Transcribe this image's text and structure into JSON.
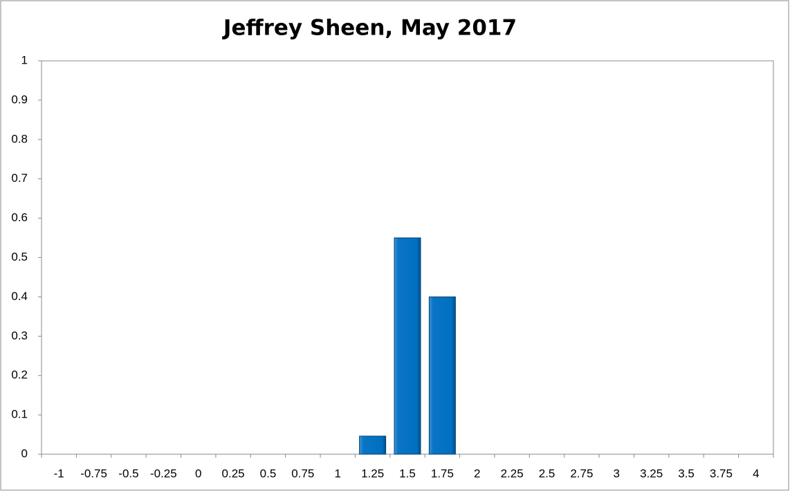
{
  "chart_data": {
    "type": "bar",
    "title": "Jeffrey Sheen, May 2017",
    "categories": [
      "-1",
      "-0.75",
      "-0.5",
      "-0.25",
      "0",
      "0.25",
      "0.5",
      "0.75",
      "1",
      "1.25",
      "1.5",
      "1.75",
      "2",
      "2.25",
      "2.5",
      "2.75",
      "3",
      "3.25",
      "3.5",
      "3.75",
      "4"
    ],
    "values": [
      0,
      0,
      0,
      0,
      0,
      0,
      0,
      0,
      0,
      0.046,
      0.55,
      0.4,
      0,
      0,
      0,
      0,
      0,
      0,
      0,
      0,
      0
    ],
    "color": "#0070c0",
    "ylim": [
      0,
      1
    ],
    "yticks": [
      0,
      0.1,
      0.2,
      0.3,
      0.4,
      0.5,
      0.6,
      0.7,
      0.8,
      0.9,
      1
    ],
    "grid": false
  }
}
